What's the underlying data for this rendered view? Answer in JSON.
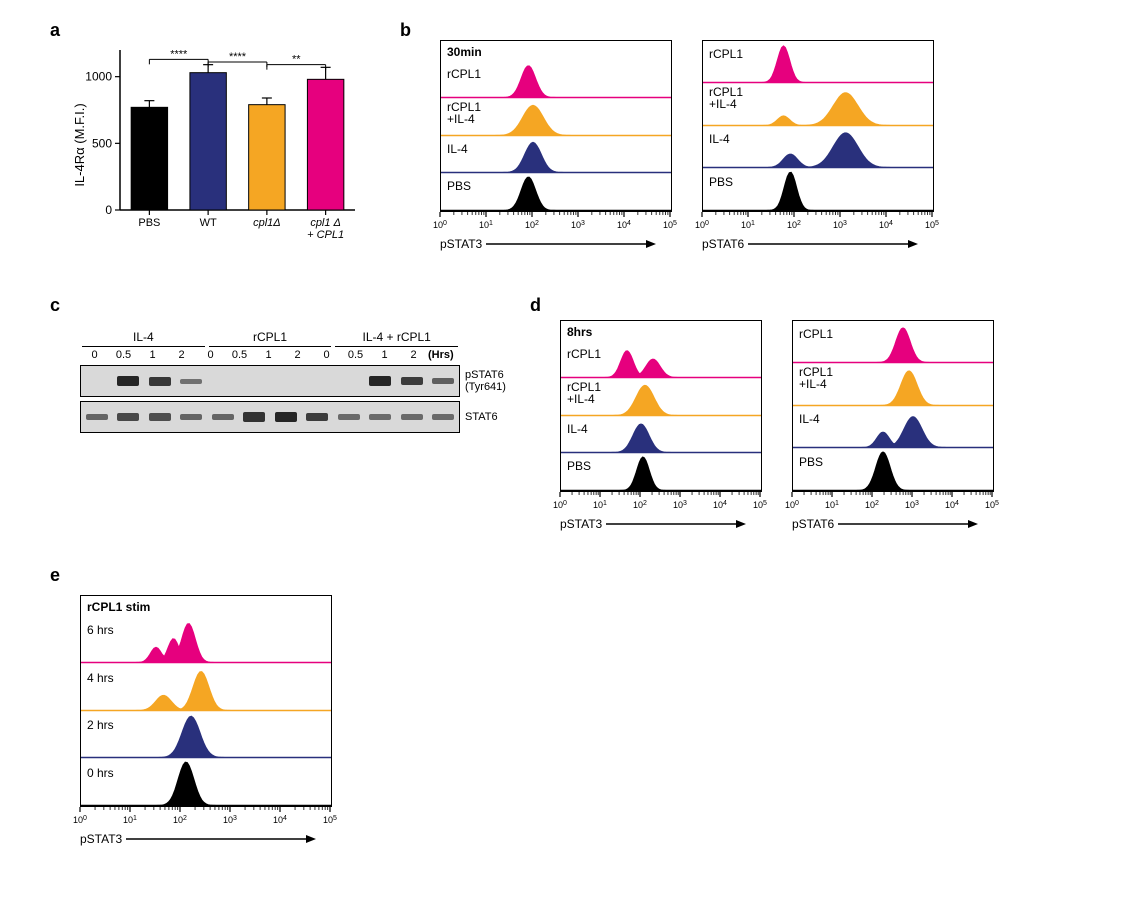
{
  "panel_labels": {
    "a": "a",
    "b": "b",
    "c": "c",
    "d": "d",
    "e": "e"
  },
  "colors": {
    "pbs": "#000000",
    "wt": "#29307c",
    "cpl1d": "#f5a623",
    "cpl1d_comp": "#e6007e",
    "axis": "#000000",
    "blot_bg": "#d9d9d9"
  },
  "panel_a": {
    "type": "bar",
    "ylabel": "IL-4Rα (M.F.I.)",
    "ylim": [
      0,
      1200
    ],
    "yticks": [
      0,
      500,
      1000
    ],
    "categories": [
      "PBS",
      "WT",
      "cpl1Δ",
      "cpl1 Δ\n+ CPL1"
    ],
    "category_styles": [
      "plain",
      "plain",
      "italic",
      "italic"
    ],
    "values": [
      770,
      1030,
      790,
      980
    ],
    "errors": [
      50,
      60,
      50,
      90
    ],
    "bar_colors": [
      "#000000",
      "#29307c",
      "#f5a623",
      "#e6007e"
    ],
    "bar_width": 0.62,
    "significance": [
      {
        "from": 0,
        "to": 1,
        "label": "****",
        "y": 1130
      },
      {
        "from": 1,
        "to": 2,
        "label": "****",
        "y": 1110
      },
      {
        "from": 2,
        "to": 3,
        "label": "**",
        "y": 1090
      }
    ]
  },
  "histo_common": {
    "x_ticks": [
      "10^0",
      "10^1",
      "10^2",
      "10^3",
      "10^4",
      "10^5"
    ]
  },
  "panel_b": {
    "title": "30min",
    "row_labels": [
      "rCPL1",
      "rCPL1\n+IL-4",
      "IL-4",
      "PBS"
    ],
    "row_colors": [
      "#e6007e",
      "#f5a623",
      "#29307c",
      "#000000"
    ],
    "left": {
      "xaxis_label": "pSTAT3",
      "peaks": [
        [
          {
            "c": 0.38,
            "w": 0.07,
            "h": 0.95
          }
        ],
        [
          {
            "c": 0.4,
            "w": 0.1,
            "h": 0.9
          }
        ],
        [
          {
            "c": 0.4,
            "w": 0.08,
            "h": 0.9
          }
        ],
        [
          {
            "c": 0.38,
            "w": 0.07,
            "h": 1.0
          }
        ]
      ]
    },
    "right": {
      "xaxis_label": "pSTAT6",
      "peaks": [
        [
          {
            "c": 0.35,
            "w": 0.06,
            "h": 0.95
          }
        ],
        [
          {
            "c": 0.35,
            "w": 0.06,
            "h": 0.25
          },
          {
            "c": 0.62,
            "w": 0.12,
            "h": 0.85
          }
        ],
        [
          {
            "c": 0.38,
            "w": 0.07,
            "h": 0.35
          },
          {
            "c": 0.62,
            "w": 0.12,
            "h": 0.9
          }
        ],
        [
          {
            "c": 0.38,
            "w": 0.06,
            "h": 1.0
          }
        ]
      ]
    }
  },
  "panel_d": {
    "title": "8hrs",
    "row_labels": [
      "rCPL1",
      "rCPL1\n+IL-4",
      "IL-4",
      "PBS"
    ],
    "row_colors": [
      "#e6007e",
      "#f5a623",
      "#29307c",
      "#000000"
    ],
    "left": {
      "xaxis_label": "pSTAT3",
      "peaks": [
        [
          {
            "c": 0.33,
            "w": 0.07,
            "h": 0.8
          },
          {
            "c": 0.46,
            "w": 0.08,
            "h": 0.55
          }
        ],
        [
          {
            "c": 0.42,
            "w": 0.1,
            "h": 0.9
          }
        ],
        [
          {
            "c": 0.4,
            "w": 0.09,
            "h": 0.85
          }
        ],
        [
          {
            "c": 0.41,
            "w": 0.07,
            "h": 1.0
          }
        ]
      ]
    },
    "right": {
      "xaxis_label": "pSTAT6",
      "peaks": [
        [
          {
            "c": 0.55,
            "w": 0.08,
            "h": 0.9
          }
        ],
        [
          {
            "c": 0.58,
            "w": 0.09,
            "h": 0.9
          }
        ],
        [
          {
            "c": 0.45,
            "w": 0.07,
            "h": 0.4
          },
          {
            "c": 0.6,
            "w": 0.1,
            "h": 0.8
          }
        ],
        [
          {
            "c": 0.45,
            "w": 0.08,
            "h": 1.0
          }
        ]
      ]
    }
  },
  "panel_e": {
    "title": "rCPL1 stim",
    "row_labels": [
      "6 hrs",
      "4 hrs",
      "2 hrs",
      "0 hrs"
    ],
    "row_colors": [
      "#e6007e",
      "#f5a623",
      "#29307c",
      "#000000"
    ],
    "xaxis_label": "pSTAT3",
    "peaks": [
      [
        {
          "c": 0.3,
          "w": 0.05,
          "h": 0.35
        },
        {
          "c": 0.37,
          "w": 0.05,
          "h": 0.55
        },
        {
          "c": 0.43,
          "w": 0.06,
          "h": 0.9
        }
      ],
      [
        {
          "c": 0.33,
          "w": 0.07,
          "h": 0.35
        },
        {
          "c": 0.48,
          "w": 0.07,
          "h": 0.9
        }
      ],
      [
        {
          "c": 0.44,
          "w": 0.08,
          "h": 0.95
        }
      ],
      [
        {
          "c": 0.42,
          "w": 0.07,
          "h": 1.0
        }
      ]
    ]
  },
  "panel_c": {
    "groups": [
      "IL-4",
      "rCPL1",
      "IL-4 + rCPL1"
    ],
    "timepoints": [
      "0",
      "0.5",
      "1",
      "2"
    ],
    "time_unit": "(Hrs)",
    "rows": [
      {
        "label": "pSTAT6\n(Tyr641)",
        "bands": [
          0,
          0.9,
          0.75,
          0.25,
          0,
          0,
          0,
          0,
          0,
          0.9,
          0.7,
          0.4
        ]
      },
      {
        "label": "STAT6",
        "bands": [
          0.35,
          0.6,
          0.55,
          0.35,
          0.35,
          0.8,
          0.9,
          0.7,
          0.3,
          0.3,
          0.3,
          0.3
        ]
      }
    ]
  }
}
